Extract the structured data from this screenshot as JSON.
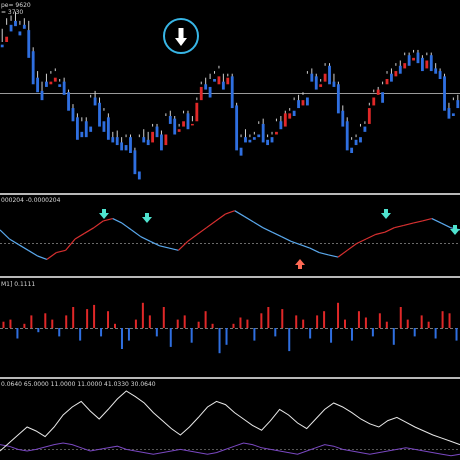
{
  "header": {
    "line1": "pe= 9620",
    "line2": "= 3730"
  },
  "oscillator": {
    "label": "000204 -0.0000204"
  },
  "histogram": {
    "label": "M1] 0.1111"
  },
  "lower": {
    "label": "0.0640 65.0000 11.0000 11.0000 41.0330 30.0640"
  },
  "colors": {
    "background": "#000000",
    "bull": "#e02828",
    "bear": "#2f6fe0",
    "separator": "#b8b8b8",
    "cyan_arrow": "#4fe3cf",
    "red_arrow": "#ff6a55",
    "highlight_circle": "#38b6e6",
    "osc_blue": "#5aa8ec",
    "osc_red": "#d83030",
    "line_white": "#e8e8e8",
    "line_purple": "#7a48c2"
  },
  "icons": {
    "signal_circle": "white-down-arrow-in-blue-circle",
    "osc_down": "cyan-down-arrow",
    "osc_up": "red-up-arrow"
  },
  "chart_data": [
    {
      "type": "candlestick",
      "ohlc": [
        [
          140,
          138,
          152,
          142
        ],
        [
          142,
          146,
          160,
          155
        ],
        [
          155,
          150,
          162,
          158
        ],
        [
          158,
          154,
          165,
          156
        ],
        [
          150,
          147,
          158,
          155
        ],
        [
          155,
          152,
          160,
          154
        ],
        [
          151,
          130,
          158,
          150
        ],
        [
          135,
          110,
          138,
          115
        ],
        [
          115,
          104,
          120,
          108
        ],
        [
          105,
          98,
          112,
          100
        ],
        [
          112,
          108,
          118,
          110
        ],
        [
          110,
          112,
          120,
          118
        ],
        [
          112,
          115,
          122,
          120
        ],
        [
          110,
          108,
          114,
          112
        ],
        [
          112,
          102,
          115,
          104
        ],
        [
          104,
          90,
          106,
          92
        ],
        [
          92,
          82,
          95,
          85
        ],
        [
          85,
          68,
          88,
          70
        ],
        [
          74,
          70,
          85,
          82
        ],
        [
          82,
          70,
          85,
          72
        ],
        [
          78,
          74,
          102,
          100
        ],
        [
          100,
          94,
          105,
          96
        ],
        [
          96,
          78,
          100,
          82
        ],
        [
          82,
          74,
          92,
          90
        ],
        [
          85,
          68,
          88,
          70
        ],
        [
          70,
          66,
          74,
          68
        ],
        [
          70,
          64,
          75,
          66
        ],
        [
          66,
          60,
          70,
          62
        ],
        [
          64,
          60,
          72,
          70
        ],
        [
          70,
          58,
          72,
          60
        ],
        [
          60,
          42,
          62,
          44
        ],
        [
          44,
          38,
          72,
          70
        ],
        [
          70,
          66,
          76,
          68
        ],
        [
          68,
          64,
          74,
          66
        ],
        [
          66,
          74,
          80,
          78
        ],
        [
          78,
          70,
          80,
          72
        ],
        [
          72,
          60,
          75,
          64
        ],
        [
          64,
          72,
          88,
          86
        ],
        [
          86,
          80,
          90,
          84
        ],
        [
          84,
          72,
          86,
          74
        ],
        [
          74,
          76,
          80,
          78
        ],
        [
          78,
          82,
          90,
          88
        ],
        [
          88,
          76,
          90,
          80
        ],
        [
          80,
          80,
          86,
          82
        ],
        [
          82,
          96,
          100,
          98
        ],
        [
          98,
          108,
          112,
          110
        ],
        [
          110,
          106,
          115,
          108
        ],
        [
          108,
          100,
          118,
          114
        ],
        [
          114,
          112,
          120,
          118
        ],
        [
          110,
          116,
          124,
          122
        ],
        [
          112,
          106,
          118,
          110
        ],
        [
          110,
          115,
          118,
          116
        ],
        [
          116,
          92,
          118,
          94
        ],
        [
          94,
          60,
          96,
          62
        ],
        [
          62,
          56,
          72,
          70
        ],
        [
          70,
          66,
          76,
          68
        ],
        [
          68,
          66,
          72,
          70
        ],
        [
          70,
          68,
          74,
          72
        ],
        [
          72,
          70,
          82,
          80
        ],
        [
          80,
          66,
          84,
          68
        ],
        [
          68,
          64,
          72,
          70
        ],
        [
          70,
          66,
          74,
          72
        ],
        [
          72,
          74,
          84,
          82
        ],
        [
          82,
          76,
          86,
          78
        ],
        [
          78,
          88,
          90,
          84
        ],
        [
          84,
          88,
          92,
          90
        ],
        [
          90,
          86,
          100,
          98
        ],
        [
          98,
          92,
          102,
          94
        ],
        [
          94,
          98,
          104,
          102
        ],
        [
          100,
          94,
          120,
          118
        ],
        [
          118,
          112,
          122,
          116
        ],
        [
          116,
          106,
          118,
          108
        ],
        [
          108,
          110,
          114,
          112
        ],
        [
          112,
          118,
          126,
          124
        ],
        [
          124,
          110,
          126,
          112
        ],
        [
          112,
          108,
          118,
          110
        ],
        [
          110,
          88,
          112,
          90
        ],
        [
          90,
          78,
          94,
          82
        ],
        [
          82,
          60,
          85,
          62
        ],
        [
          62,
          58,
          70,
          68
        ],
        [
          68,
          64,
          72,
          70
        ],
        [
          70,
          66,
          80,
          78
        ],
        [
          78,
          74,
          82,
          80
        ],
        [
          80,
          92,
          96,
          94
        ],
        [
          94,
          100,
          106,
          104
        ],
        [
          102,
          106,
          108,
          104
        ],
        [
          104,
          96,
          112,
          110
        ],
        [
          110,
          114,
          120,
          118
        ],
        [
          118,
          112,
          122,
          116
        ],
        [
          116,
          120,
          126,
          124
        ],
        [
          124,
          118,
          128,
          122
        ],
        [
          122,
          126,
          134,
          132
        ],
        [
          132,
          124,
          134,
          128
        ],
        [
          128,
          130,
          136,
          134
        ],
        [
          134,
          126,
          136,
          130
        ],
        [
          130,
          120,
          132,
          122
        ],
        [
          122,
          128,
          134,
          132
        ],
        [
          132,
          120,
          134,
          122
        ],
        [
          122,
          118,
          126,
          120
        ],
        [
          120,
          114,
          122,
          116
        ],
        [
          116,
          90,
          118,
          92
        ],
        [
          92,
          84,
          96,
          88
        ],
        [
          88,
          86,
          100,
          98
        ],
        [
          98,
          92,
          102,
          94
        ]
      ]
    },
    {
      "type": "line",
      "series": [
        {
          "values": [
            38,
            30,
            25,
            20,
            15,
            12,
            18,
            20,
            30,
            35,
            40,
            46,
            48,
            44,
            38,
            32,
            28,
            24,
            22,
            20,
            28,
            34,
            40,
            46,
            52,
            55,
            50,
            45,
            40,
            36,
            32,
            28,
            25,
            22,
            18,
            16,
            14,
            20,
            26,
            30,
            34,
            36,
            40,
            42,
            44,
            46,
            48,
            44,
            40,
            38
          ]
        }
      ]
    },
    {
      "type": "bar",
      "values": [
        0.15,
        0.2,
        -0.25,
        0.1,
        0.3,
        -0.1,
        0.35,
        0.2,
        -0.2,
        0.3,
        0.5,
        -0.3,
        0.45,
        0.55,
        -0.2,
        0.4,
        0.1,
        -0.5,
        -0.3,
        0.2,
        0.6,
        0.3,
        -0.2,
        0.5,
        -0.45,
        0.2,
        0.3,
        -0.35,
        0.15,
        0.4,
        0.1,
        -0.6,
        -0.4,
        0.1,
        0.25,
        0.2,
        -0.3,
        0.35,
        0.5,
        -0.2,
        0.45,
        -0.55,
        0.3,
        0.2,
        -0.25,
        0.3,
        0.4,
        -0.35,
        0.6,
        0.2,
        -0.3,
        0.4,
        0.25,
        -0.2,
        0.35,
        0.15,
        -0.4,
        0.5,
        0.2,
        -0.2,
        0.3,
        0.15,
        -0.25,
        0.4,
        0.35,
        -0.3
      ]
    },
    {
      "type": "line",
      "series": [
        {
          "values": [
            10,
            20,
            30,
            40,
            35,
            28,
            40,
            55,
            65,
            72,
            60,
            50,
            62,
            75,
            85,
            78,
            70,
            58,
            48,
            38,
            30,
            40,
            52,
            65,
            72,
            68,
            58,
            50,
            42,
            36,
            48,
            62,
            55,
            45,
            38,
            50,
            62,
            70,
            65,
            58,
            50,
            44,
            40,
            48,
            52,
            46,
            40,
            35,
            30,
            26,
            22,
            18
          ]
        },
        {
          "values": [
            18,
            16,
            12,
            10,
            12,
            15,
            18,
            20,
            18,
            14,
            10,
            12,
            14,
            16,
            12,
            10,
            8,
            6,
            8,
            10,
            12,
            10,
            8,
            6,
            8,
            12,
            16,
            20,
            18,
            14,
            12,
            10,
            8,
            6,
            10,
            14,
            18,
            16,
            12,
            10,
            8,
            6,
            8,
            10,
            12,
            14,
            12,
            10,
            8,
            6,
            4,
            6
          ]
        }
      ]
    }
  ]
}
